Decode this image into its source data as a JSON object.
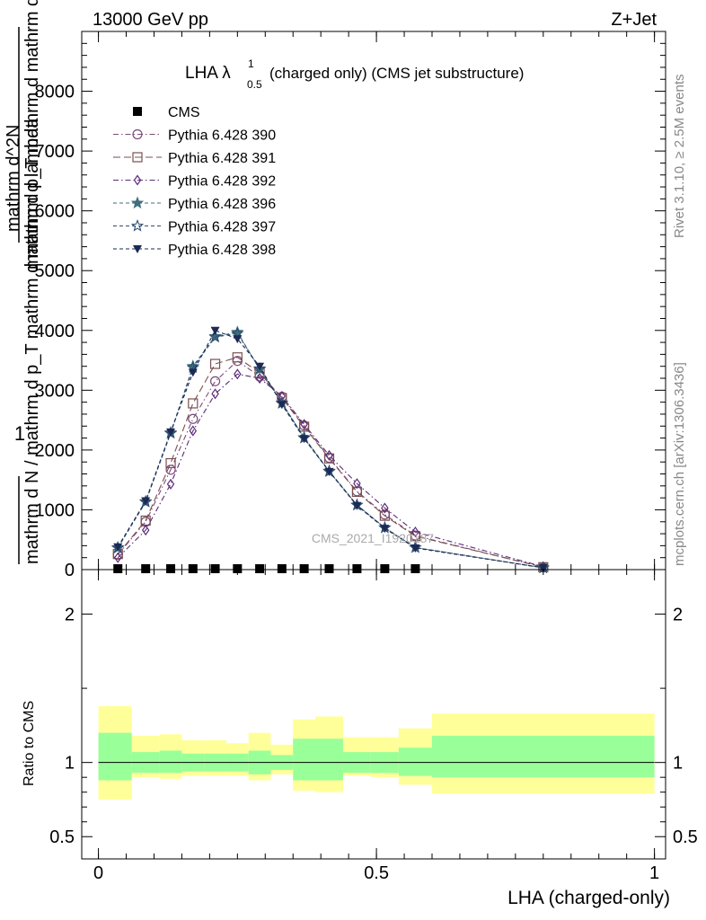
{
  "header": {
    "energy_label": "13000 GeV pp",
    "process_label": "Z+Jet"
  },
  "side_labels": {
    "rivet": "Rivet 3.1.10, ≥ 2.5M events",
    "mcplots": "mcplots.cern.ch [arXiv:1306.3436]"
  },
  "chart_data": {
    "type": "line",
    "title_main": "LHA λ",
    "title_sup": "1",
    "title_sub": "0.5",
    "title_rest": "(charged only) (CMS jet substructure)",
    "watermark": "CMS_2021_I1920187",
    "ylabel_main_num": "1",
    "ylabel_main_den": "mathrm d N",
    "ylabel_main_den2": "mathrm d N / mathrm d p_T mathrm d mathrm d lambda",
    "ylabel_num2": "mathrm d^2N",
    "ylabel_num2_den": "mathrm d p_T mathrm d mathrm d lambda",
    "ylabel_ratio": "Ratio to CMS",
    "xlabel": "LHA (charged-only)",
    "xlim": [
      -0.03,
      1.02
    ],
    "ylim_main": [
      0,
      9000
    ],
    "yticks_main": [
      0,
      1000,
      2000,
      3000,
      4000,
      5000,
      6000,
      7000,
      8000
    ],
    "yticklabels_main": [
      "0",
      "1000",
      "2000",
      "3000",
      "4000",
      "5000",
      "6000",
      "7000",
      "8000"
    ],
    "ylim_ratio": [
      0.35,
      2.3
    ],
    "yticks_ratio": [
      0.5,
      1,
      2
    ],
    "yticklabels_ratio": [
      "0.5",
      "1",
      "2"
    ],
    "xticks": [
      0,
      0.5,
      1
    ],
    "xticklabels": [
      "0",
      "0.5",
      "1"
    ],
    "x": [
      0.035,
      0.085,
      0.13,
      0.17,
      0.21,
      0.25,
      0.29,
      0.33,
      0.37,
      0.415,
      0.465,
      0.515,
      0.57,
      0.8
    ],
    "cms": {
      "name": "CMS",
      "values": [
        5,
        5,
        5,
        5,
        5,
        5,
        5,
        5,
        5,
        5,
        5,
        5,
        5,
        5
      ],
      "color": "#000000"
    },
    "series": [
      {
        "name": "Pythia 6.428 390",
        "marker": "circle",
        "color": "#7d4a7b",
        "dash": "6,3,1.5,3",
        "values": [
          250,
          800,
          1670,
          2520,
          3150,
          3490,
          3230,
          2890,
          2410,
          1870,
          1310,
          920,
          570,
          40
        ]
      },
      {
        "name": "Pythia 6.428 391",
        "marker": "square",
        "color": "#7a5050",
        "dash": "8,4",
        "values": [
          260,
          820,
          1780,
          2780,
          3440,
          3550,
          3290,
          2870,
          2390,
          1860,
          1300,
          900,
          560,
          40
        ]
      },
      {
        "name": "Pythia 6.428 392",
        "marker": "diamond",
        "color": "#5a2a7a",
        "dash": "6,3,1.5,3",
        "values": [
          200,
          660,
          1430,
          2320,
          2940,
          3270,
          3200,
          2900,
          2430,
          1910,
          1440,
          1030,
          630,
          50
        ]
      },
      {
        "name": "Pythia 6.428 396",
        "marker": "star",
        "color": "#3f6e7e",
        "dash": "4,3",
        "values": [
          360,
          1140,
          2280,
          3400,
          3900,
          3970,
          3350,
          2780,
          2210,
          1650,
          1080,
          700,
          370,
          30
        ]
      },
      {
        "name": "Pythia 6.428 397",
        "marker": "star-open",
        "color": "#2f4e70",
        "dash": "4,3",
        "values": [
          370,
          1130,
          2290,
          3380,
          3890,
          3950,
          3360,
          2790,
          2200,
          1640,
          1080,
          700,
          370,
          30
        ]
      },
      {
        "name": "Pythia 6.428 398",
        "marker": "triangle-down",
        "color": "#1c2a55",
        "dash": "4,3",
        "values": [
          380,
          1150,
          2300,
          3300,
          4000,
          3860,
          3400,
          2760,
          2190,
          1640,
          1070,
          690,
          360,
          30
        ]
      }
    ],
    "ratio_bands": {
      "edges": [
        0.0,
        0.06,
        0.11,
        0.15,
        0.19,
        0.23,
        0.27,
        0.31,
        0.35,
        0.39,
        0.44,
        0.49,
        0.54,
        0.6,
        1.0
      ],
      "green_lo": [
        0.88,
        0.93,
        0.93,
        0.94,
        0.94,
        0.94,
        0.92,
        0.95,
        0.88,
        0.88,
        0.93,
        0.93,
        0.91,
        0.9
      ],
      "green_hi": [
        1.2,
        1.07,
        1.08,
        1.06,
        1.06,
        1.06,
        1.08,
        1.05,
        1.16,
        1.16,
        1.07,
        1.07,
        1.1,
        1.18
      ],
      "yellow_lo": [
        0.75,
        0.9,
        0.89,
        0.91,
        0.91,
        0.91,
        0.88,
        0.92,
        0.81,
        0.8,
        0.91,
        0.9,
        0.85,
        0.79
      ],
      "yellow_hi": [
        1.38,
        1.18,
        1.19,
        1.15,
        1.15,
        1.13,
        1.2,
        1.12,
        1.29,
        1.31,
        1.17,
        1.17,
        1.23,
        1.33
      ],
      "green_color": "#99ff99",
      "yellow_color": "#ffff99"
    }
  }
}
